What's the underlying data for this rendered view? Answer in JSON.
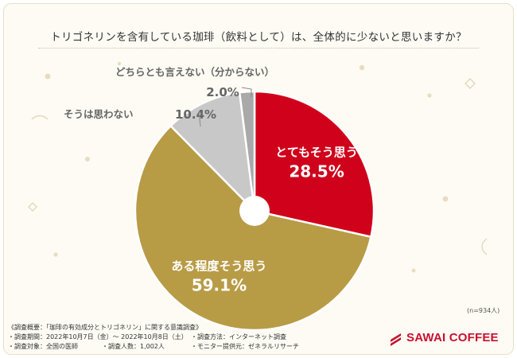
{
  "title": "トリゴネリンを含有している珈琲（飲料として）は、全体的に少ないと思いますか？",
  "sample_size": "(n=934人)",
  "survey": {
    "summary": "《調査概要：「珈琲の有効成分とトリゴネリン」に関する意識調査》",
    "period": "・調査期間：2022年10月7日（金）～ 2022年10月8日（土）",
    "method": "・調査方法：インターネット調査",
    "target": "・調査対象：全国の医師",
    "count": "・調査人数：1,002人",
    "monitor": "・モニター提供元：ゼネラルリサーチ"
  },
  "logo": {
    "text": "SAWAI COFFEE",
    "color": "#c8102e"
  },
  "chart_data": {
    "type": "pie",
    "style": "donut",
    "unit": "%",
    "slices": [
      {
        "label": "とてもそう思う",
        "value": 28.5,
        "color": "#d0021b",
        "label_color": "#ffffff"
      },
      {
        "label": "ある程度そう思う",
        "value": 59.1,
        "color": "#b89b45",
        "label_color": "#ffffff"
      },
      {
        "label": "そうは思わない",
        "value": 10.4,
        "color": "#c8c8c8",
        "label_color": "#666666"
      },
      {
        "label": "どちらとも言えない（分からない）",
        "value": 2.0,
        "color": "#a9a9a9",
        "label_color": "#666666"
      }
    ]
  }
}
